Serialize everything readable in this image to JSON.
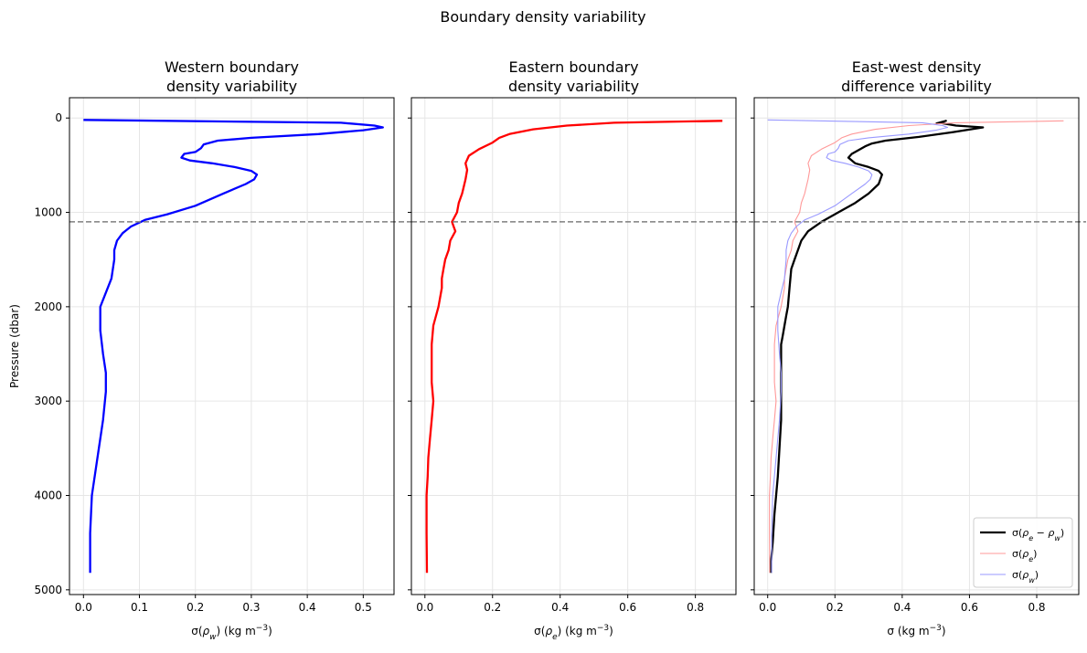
{
  "figure": {
    "suptitle": "Boundary density variability"
  },
  "chart_data": [
    {
      "type": "line",
      "title": "Western boundary\ndensity variability",
      "title_lines": [
        "Western boundary",
        "density variability"
      ],
      "xlabel": "σ(ρ_w) (kg m⁻³)",
      "ylabel": "Pressure (dbar)",
      "xlim": [
        -0.025,
        0.555
      ],
      "ylim": [
        5050,
        -215
      ],
      "y_inverted": true,
      "xticks": [
        0.0,
        0.1,
        0.2,
        0.3,
        0.4,
        0.5
      ],
      "xtick_labels": [
        "0.0",
        "0.1",
        "0.2",
        "0.3",
        "0.4",
        "0.5"
      ],
      "yticks": [
        0,
        1000,
        2000,
        3000,
        4000,
        5000
      ],
      "ytick_labels": [
        "0",
        "1000",
        "2000",
        "3000",
        "4000",
        "5000"
      ],
      "grid": true,
      "hline": {
        "y": 1100,
        "style": "dashed",
        "color": "#7f7f7f"
      },
      "series": [
        {
          "color": "#0000ff",
          "x": [
            0.0,
            0.46,
            0.52,
            0.535,
            0.5,
            0.42,
            0.3,
            0.24,
            0.215,
            0.21,
            0.2,
            0.18,
            0.175,
            0.19,
            0.23,
            0.27,
            0.3,
            0.31,
            0.305,
            0.29,
            0.25,
            0.2,
            0.15,
            0.11,
            0.085,
            0.07,
            0.06,
            0.055,
            0.055,
            0.05,
            0.04,
            0.03,
            0.03,
            0.035,
            0.04,
            0.04,
            0.035,
            0.025,
            0.015,
            0.012,
            0.012
          ],
          "y": [
            20,
            50,
            80,
            100,
            130,
            170,
            210,
            240,
            280,
            320,
            360,
            380,
            420,
            450,
            480,
            520,
            560,
            600,
            650,
            700,
            800,
            930,
            1020,
            1080,
            1150,
            1220,
            1300,
            1400,
            1500,
            1700,
            1850,
            2000,
            2250,
            2500,
            2700,
            2900,
            3200,
            3600,
            4000,
            4400,
            4820
          ]
        }
      ]
    },
    {
      "type": "line",
      "title": "Eastern boundary\ndensity variability",
      "title_lines": [
        "Eastern boundary",
        "density variability"
      ],
      "xlabel": "σ(ρ_e) (kg m⁻³)",
      "ylabel": "",
      "xlim": [
        -0.04,
        0.92
      ],
      "ylim": [
        5050,
        -215
      ],
      "y_inverted": true,
      "xticks": [
        0.0,
        0.2,
        0.4,
        0.6,
        0.8
      ],
      "xtick_labels": [
        "0.0",
        "0.2",
        "0.4",
        "0.6",
        "0.8"
      ],
      "yticks": [
        0,
        1000,
        2000,
        3000,
        4000,
        5000
      ],
      "ytick_labels": [],
      "grid": true,
      "hline": {
        "y": 1100,
        "style": "dashed",
        "color": "#7f7f7f"
      },
      "series": [
        {
          "color": "#ff0000",
          "x": [
            0.88,
            0.56,
            0.42,
            0.32,
            0.25,
            0.22,
            0.2,
            0.16,
            0.13,
            0.12,
            0.125,
            0.12,
            0.11,
            0.1,
            0.095,
            0.08,
            0.085,
            0.09,
            0.075,
            0.07,
            0.06,
            0.055,
            0.05,
            0.05,
            0.04,
            0.025,
            0.02,
            0.02,
            0.02,
            0.025,
            0.02,
            0.015,
            0.01,
            0.008,
            0.005,
            0.005,
            0.006
          ],
          "y": [
            30,
            50,
            80,
            120,
            170,
            210,
            260,
            330,
            400,
            480,
            550,
            650,
            800,
            900,
            1000,
            1100,
            1150,
            1200,
            1300,
            1400,
            1500,
            1600,
            1700,
            1800,
            2000,
            2200,
            2400,
            2600,
            2800,
            3000,
            3200,
            3400,
            3600,
            3800,
            4000,
            4400,
            4820
          ]
        }
      ]
    },
    {
      "type": "line",
      "title": "East-west density\ndifference variability",
      "title_lines": [
        "East-west density",
        "difference variability"
      ],
      "xlabel": "σ (kg m⁻³)",
      "ylabel": "",
      "xlim": [
        -0.04,
        0.925
      ],
      "ylim": [
        5050,
        -215
      ],
      "y_inverted": true,
      "xticks": [
        0.0,
        0.2,
        0.4,
        0.6,
        0.8
      ],
      "xtick_labels": [
        "0.0",
        "0.2",
        "0.4",
        "0.6",
        "0.8"
      ],
      "yticks": [
        0,
        1000,
        2000,
        3000,
        4000,
        5000
      ],
      "ytick_labels": [],
      "grid": true,
      "hline": {
        "y": 1100,
        "style": "dashed",
        "color": "#7f7f7f"
      },
      "legend": {
        "position": "lower right",
        "entries": [
          "σ(ρe − ρw)",
          "σ(ρe)",
          "σ(ρw)"
        ]
      },
      "series": [
        {
          "name": "σ(ρe − ρw)",
          "color": "#000000",
          "width": "thick",
          "x": [
            0.5,
            0.53,
            0.51,
            0.56,
            0.64,
            0.55,
            0.45,
            0.35,
            0.31,
            0.29,
            0.25,
            0.24,
            0.26,
            0.3,
            0.33,
            0.34,
            0.33,
            0.3,
            0.26,
            0.21,
            0.16,
            0.12,
            0.1,
            0.09,
            0.08,
            0.07,
            0.065,
            0.06,
            0.055,
            0.05,
            0.045,
            0.04,
            0.04,
            0.04,
            0.04,
            0.04,
            0.035,
            0.03,
            0.02,
            0.015,
            0.01,
            0.01
          ],
          "y": [
            60,
            30,
            50,
            80,
            100,
            150,
            200,
            240,
            270,
            300,
            380,
            420,
            480,
            520,
            560,
            600,
            700,
            800,
            900,
            1000,
            1100,
            1200,
            1300,
            1400,
            1500,
            1600,
            1800,
            2000,
            2100,
            2200,
            2300,
            2400,
            2600,
            2800,
            3000,
            3200,
            3500,
            3800,
            4200,
            4500,
            4700,
            4820
          ]
        },
        {
          "name": "σ(ρe)",
          "color": "#ff9999",
          "width": "thin",
          "x": [
            0.88,
            0.56,
            0.42,
            0.32,
            0.25,
            0.22,
            0.2,
            0.16,
            0.13,
            0.12,
            0.125,
            0.12,
            0.11,
            0.1,
            0.095,
            0.08,
            0.085,
            0.09,
            0.075,
            0.07,
            0.06,
            0.055,
            0.05,
            0.05,
            0.04,
            0.025,
            0.02,
            0.02,
            0.02,
            0.025,
            0.02,
            0.015,
            0.01,
            0.008,
            0.005,
            0.005,
            0.006
          ],
          "y": [
            30,
            50,
            80,
            120,
            170,
            210,
            260,
            330,
            400,
            480,
            550,
            650,
            800,
            900,
            1000,
            1100,
            1150,
            1200,
            1300,
            1400,
            1500,
            1600,
            1700,
            1800,
            2000,
            2200,
            2400,
            2600,
            2800,
            3000,
            3200,
            3400,
            3600,
            3800,
            4000,
            4400,
            4820
          ]
        },
        {
          "name": "σ(ρw)",
          "color": "#9999ff",
          "width": "thin",
          "x": [
            0.0,
            0.46,
            0.52,
            0.535,
            0.5,
            0.42,
            0.3,
            0.24,
            0.215,
            0.21,
            0.2,
            0.18,
            0.175,
            0.19,
            0.23,
            0.27,
            0.3,
            0.31,
            0.305,
            0.29,
            0.25,
            0.2,
            0.15,
            0.11,
            0.085,
            0.07,
            0.06,
            0.055,
            0.055,
            0.05,
            0.04,
            0.03,
            0.03,
            0.035,
            0.04,
            0.04,
            0.035,
            0.025,
            0.015,
            0.012,
            0.012
          ],
          "y": [
            20,
            50,
            80,
            100,
            130,
            170,
            210,
            240,
            280,
            320,
            360,
            380,
            420,
            450,
            480,
            520,
            560,
            600,
            650,
            700,
            800,
            930,
            1020,
            1080,
            1150,
            1220,
            1300,
            1400,
            1500,
            1700,
            1850,
            2000,
            2250,
            2500,
            2700,
            2900,
            3200,
            3600,
            4000,
            4400,
            4820
          ]
        }
      ]
    }
  ]
}
